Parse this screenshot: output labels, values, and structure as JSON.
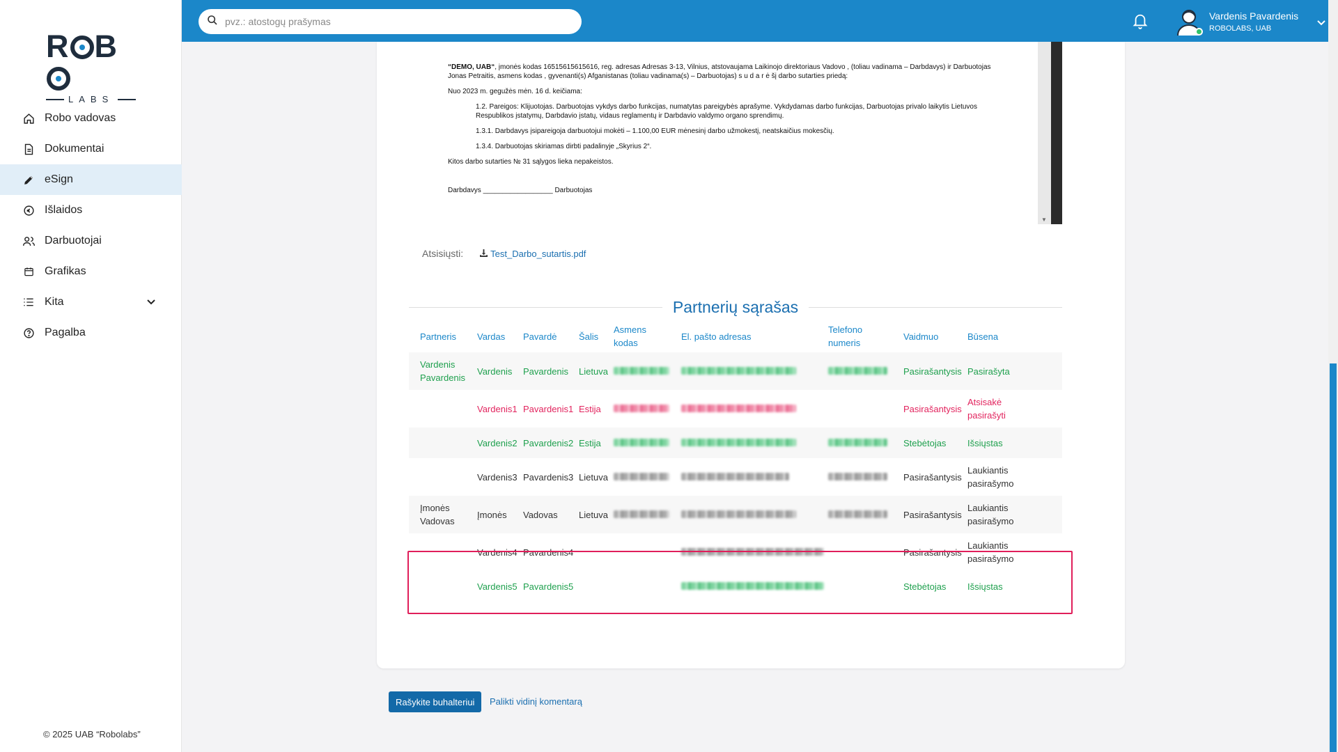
{
  "sidebar": {
    "logo_top": "ROBO",
    "logo_bottom": "LABS",
    "items": [
      {
        "label": "Robo vadovas",
        "icon": "home-icon"
      },
      {
        "label": "Dokumentai",
        "icon": "document-icon"
      },
      {
        "label": "eSign",
        "icon": "pen-icon",
        "active": true
      },
      {
        "label": "Išlaidos",
        "icon": "expenses-icon"
      },
      {
        "label": "Darbuotojai",
        "icon": "users-icon"
      },
      {
        "label": "Grafikas",
        "icon": "calendar-icon"
      },
      {
        "label": "Kita",
        "icon": "list-icon",
        "expandable": true
      },
      {
        "label": "Pagalba",
        "icon": "help-icon"
      }
    ],
    "copyright": "© 2025 UAB “Robolabs”"
  },
  "topbar": {
    "search_placeholder": "pvz.: atostogų prašymas",
    "user_name": "Vardenis Pavardenis",
    "user_company": "ROBOLABS, UAB",
    "accent": "#1b87c9"
  },
  "document": {
    "p1_bold": "“DEMO, UAB“",
    "p1": ", įmonės kodas 16515615615616, reg. adresas Adresas 3-13, Vilnius, atstovaujama Laikinojo direktoriaus Vadovo , (toliau vadinama – Darbdavys) ir Darbuotojas Jonas Petraitis, asmens kodas , gyvenanti(s) Afganistanas (toliau vadinama(s) – Darbuotojas) s u d a r ė šį darbo sutarties priedą:",
    "p2": "Nuo 2023 m. gegužės mėn. 16 d. keičiama:",
    "p3": "1.2. Pareigos: Klijuotojas. Darbuotojas vykdys darbo funkcijas, numatytas pareigybės aprašyme. Vykdydamas darbo funkcijas, Darbuotojas privalo laikytis Lietuvos Respublikos įstatymų, Darbdavio įstatų, vidaus reglamentų ir Darbdavio valdymo organo sprendimų.",
    "p4": "1.3.1. Darbdavys įsipareigoja darbuotojui mokėti – 1.100,00 EUR mėnesinį darbo užmokestį, neatskaičius mokesčių.",
    "p5": "1.3.4. Darbuotojas skiriamas dirbti padalinyje „Skyrius 2“.",
    "p6": "Kitos darbo sutarties № 31 sąlygos lieka nepakeistos.",
    "p7": "Darbdavys __________________ Darbuotojas"
  },
  "download": {
    "label": "Atsisiųsti:",
    "file": "Test_Darbo_sutartis.pdf"
  },
  "partners": {
    "title": "Partnerių sąrašas",
    "headers": [
      "Partneris",
      "Vardas",
      "Pavardė",
      "Šalis",
      "Asmens kodas",
      "El. pašto adresas",
      "Telefono numeris",
      "Vaidmuo",
      "Būsena"
    ],
    "rows": [
      {
        "partner": "Vardenis Pavardenis",
        "first": "Vardenis",
        "last": "Pavardenis",
        "country": "Lietuva",
        "role": "Pasirašantysis",
        "status": "Pasirašyta",
        "color": "green",
        "has_code": true,
        "has_phone": true
      },
      {
        "partner": "",
        "first": "Vardenis1",
        "last": "Pavardenis1",
        "country": "Estija",
        "role": "Pasirašantysis",
        "status": "Atsisakė pasirašyti",
        "color": "red",
        "has_code": true,
        "has_phone": false
      },
      {
        "partner": "",
        "first": "Vardenis2",
        "last": "Pavardenis2",
        "country": "Estija",
        "role": "Stebėtojas",
        "status": "Išsiųstas",
        "color": "green",
        "has_code": true,
        "has_phone": true
      },
      {
        "partner": "",
        "first": "Vardenis3",
        "last": "Pavardenis3",
        "country": "Lietuva",
        "role": "Pasirašantysis",
        "status": "Laukiantis pasirašymo",
        "color": "dark",
        "has_code": true,
        "has_phone": true
      },
      {
        "partner": "Įmonės Vadovas",
        "first": "Įmonės",
        "last": "Vadovas",
        "country": "Lietuva",
        "role": "Pasirašantysis",
        "status": "Laukiantis pasirašymo",
        "color": "dark",
        "has_code": true,
        "has_phone": true
      },
      {
        "partner": "",
        "first": "Vardenis4",
        "last": "Pavardenis4",
        "country": "",
        "role": "Pasirašantysis",
        "status": "Laukiantis pasirašymo",
        "color": "dark",
        "has_code": false,
        "has_phone": false
      },
      {
        "partner": "",
        "first": "Vardenis5",
        "last": "Pavardenis5",
        "country": "",
        "role": "Stebėtojas",
        "status": "Išsiųstas",
        "color": "green",
        "has_code": false,
        "has_phone": false
      }
    ]
  },
  "actions": {
    "write_accountant": "Rašykite buhalteriui",
    "leave_comment": "Palikti vidinį komentarą"
  }
}
